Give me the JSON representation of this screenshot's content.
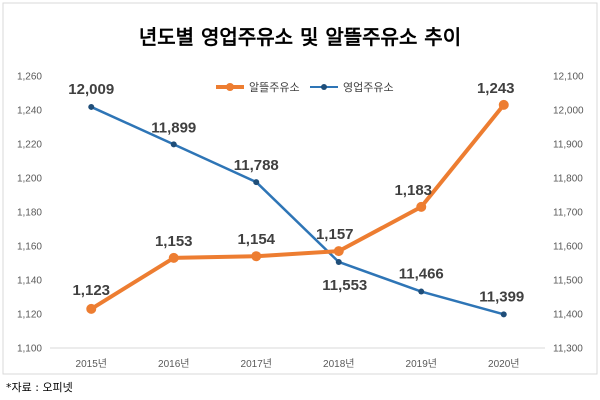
{
  "chart_data": {
    "type": "line",
    "title": "년도별 영업주유소 및 알뜰주유소 추이",
    "categories": [
      "2015년",
      "2016년",
      "2017년",
      "2018년",
      "2019년",
      "2020년"
    ],
    "series": [
      {
        "name": "알뜰주유소",
        "axis": "left",
        "color": "#ED7D31",
        "values": [
          1123,
          1153,
          1154,
          1157,
          1183,
          1243
        ],
        "labels": [
          "1,123",
          "1,153",
          "1,154",
          "1,157",
          "1,183",
          "1,243"
        ]
      },
      {
        "name": "영업주유소",
        "axis": "right",
        "color": "#2E75B6",
        "values": [
          12009,
          11899,
          11788,
          11553,
          11466,
          11399
        ],
        "labels": [
          "12,009",
          "11,899",
          "11,788",
          "11,553",
          "11,466",
          "11,399"
        ]
      }
    ],
    "y_left": {
      "range": [
        1100,
        1260
      ],
      "ticks": [
        1100,
        1120,
        1140,
        1160,
        1180,
        1200,
        1220,
        1240,
        1260
      ],
      "tick_labels": [
        "1,100",
        "1,120",
        "1,140",
        "1,160",
        "1,180",
        "1,200",
        "1,220",
        "1,240",
        "1,260"
      ]
    },
    "y_right": {
      "range": [
        11300,
        12100
      ],
      "ticks": [
        11300,
        11400,
        11500,
        11600,
        11700,
        11800,
        11900,
        12000,
        12100
      ],
      "tick_labels": [
        "11,300",
        "11,400",
        "11,500",
        "11,600",
        "11,700",
        "11,800",
        "11,900",
        "12,000",
        "12,100"
      ]
    },
    "grid": false,
    "legend_position": "top"
  },
  "source": "*자료 : 오피넷"
}
